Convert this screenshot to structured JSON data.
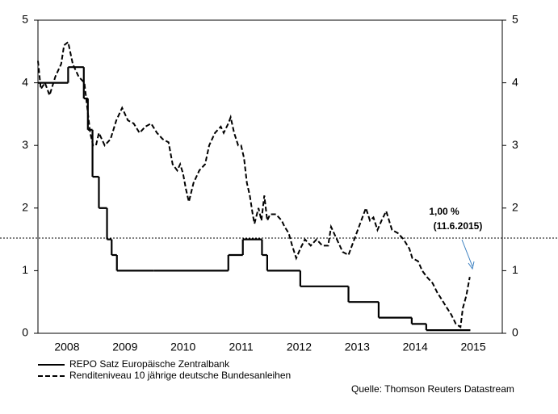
{
  "chart_data": {
    "type": "line",
    "xlim": [
      2008,
      2016
    ],
    "xticks": [
      {
        "value": 2008.5,
        "label": "2008"
      },
      {
        "value": 2009.5,
        "label": "2009"
      },
      {
        "value": 2010.5,
        "label": "2010"
      },
      {
        "value": 2011.5,
        "label": "2011"
      },
      {
        "value": 2012.5,
        "label": "2012"
      },
      {
        "value": 2013.5,
        "label": "2013"
      },
      {
        "value": 2014.5,
        "label": "2014"
      },
      {
        "value": 2015.5,
        "label": "2015"
      }
    ],
    "ylim": [
      0,
      5
    ],
    "yticks": [
      0,
      1,
      2,
      3,
      4,
      5
    ],
    "y2lim": [
      0,
      5
    ],
    "y2ticks": [
      0,
      1,
      2,
      3,
      4,
      5
    ],
    "series": [
      {
        "name": "REPO Satz Europäische Zentralbank",
        "color": "#000000",
        "style": "step",
        "x": [
          2008.0,
          2008.52,
          2008.79,
          2008.86,
          2008.94,
          2009.05,
          2009.19,
          2009.27,
          2009.36,
          2010.0,
          2011.28,
          2011.53,
          2011.86,
          2011.95,
          2012.52,
          2013.35,
          2013.87,
          2014.44,
          2014.69,
          2015.45
        ],
        "values": [
          4.0,
          4.25,
          3.75,
          3.25,
          2.5,
          2.0,
          1.5,
          1.25,
          1.0,
          1.0,
          1.25,
          1.5,
          1.25,
          1.0,
          0.75,
          0.5,
          0.25,
          0.15,
          0.05,
          0.05
        ]
      },
      {
        "name": "Renditeniveau 10 jährige deutsche Bundesanleihen",
        "color": "#000000",
        "style": "dashed",
        "x": [
          2008.0,
          2008.05,
          2008.12,
          2008.2,
          2008.3,
          2008.4,
          2008.45,
          2008.52,
          2008.6,
          2008.7,
          2008.8,
          2008.85,
          2008.9,
          2008.95,
          2009.0,
          2009.05,
          2009.15,
          2009.25,
          2009.35,
          2009.45,
          2009.55,
          2009.65,
          2009.75,
          2009.85,
          2009.95,
          2010.05,
          2010.15,
          2010.25,
          2010.32,
          2010.4,
          2010.45,
          2010.5,
          2010.55,
          2010.6,
          2010.68,
          2010.78,
          2010.88,
          2010.95,
          2011.05,
          2011.15,
          2011.2,
          2011.28,
          2011.32,
          2011.38,
          2011.45,
          2011.5,
          2011.55,
          2011.6,
          2011.65,
          2011.7,
          2011.73,
          2011.8,
          2011.85,
          2011.9,
          2011.95,
          2012.0,
          2012.1,
          2012.2,
          2012.25,
          2012.32,
          2012.38,
          2012.45,
          2012.52,
          2012.6,
          2012.7,
          2012.8,
          2012.9,
          2013.0,
          2013.05,
          2013.15,
          2013.25,
          2013.35,
          2013.45,
          2013.55,
          2013.65,
          2013.72,
          2013.78,
          2013.85,
          2013.92,
          2014.0,
          2014.1,
          2014.2,
          2014.3,
          2014.4,
          2014.45,
          2014.55,
          2014.62,
          2014.7,
          2014.8,
          2014.88,
          2014.95,
          2015.05,
          2015.12,
          2015.2,
          2015.28,
          2015.32,
          2015.38,
          2015.44
        ],
        "values": [
          4.35,
          3.9,
          4.0,
          3.8,
          4.1,
          4.3,
          4.6,
          4.65,
          4.3,
          4.1,
          4.0,
          3.6,
          3.2,
          3.0,
          3.0,
          3.2,
          3.0,
          3.1,
          3.4,
          3.6,
          3.4,
          3.35,
          3.2,
          3.3,
          3.35,
          3.2,
          3.1,
          3.05,
          2.7,
          2.6,
          2.7,
          2.55,
          2.3,
          2.1,
          2.4,
          2.6,
          2.7,
          3.0,
          3.2,
          3.3,
          3.2,
          3.35,
          3.45,
          3.2,
          3.0,
          3.0,
          2.8,
          2.4,
          2.2,
          1.9,
          1.75,
          2.0,
          1.8,
          2.2,
          1.8,
          1.9,
          1.9,
          1.8,
          1.7,
          1.6,
          1.4,
          1.2,
          1.35,
          1.5,
          1.4,
          1.5,
          1.4,
          1.4,
          1.7,
          1.5,
          1.3,
          1.25,
          1.5,
          1.75,
          2.0,
          1.8,
          1.85,
          1.65,
          1.8,
          1.95,
          1.65,
          1.6,
          1.5,
          1.35,
          1.2,
          1.15,
          1.0,
          0.9,
          0.8,
          0.65,
          0.55,
          0.4,
          0.3,
          0.15,
          0.1,
          0.4,
          0.6,
          0.9
        ]
      }
    ],
    "annotations": [
      "1,00 %",
      "(11.6.2015)"
    ],
    "annotation_color": "#1f5c99",
    "source": "Quelle: Thomson Reuters Datastream"
  }
}
